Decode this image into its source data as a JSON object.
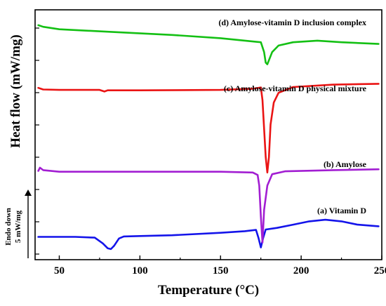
{
  "chart_data": {
    "type": "line",
    "title": "",
    "xlabel": "Temperature (°C)",
    "ylabel": "Heat flow (mW/mg)",
    "xlim": [
      35,
      250
    ],
    "x_ticks": [
      50,
      100,
      150,
      200,
      250
    ],
    "scale_bar": {
      "line1": "Endo down",
      "line2": "5 mW/mg",
      "value": 5,
      "unit": "mW/mg"
    },
    "y_units_note": "curves are vertically offset; y values below are on the relative heat-flow scale (mW/mg) implied by the 5 mW/mg bar",
    "series": [
      {
        "name": "(a) Vitamin D",
        "color": "#1414ea",
        "points": [
          [
            37,
            4.7
          ],
          [
            60,
            4.7
          ],
          [
            72,
            4.6
          ],
          [
            77,
            3.9
          ],
          [
            80,
            3.3
          ],
          [
            82,
            3.2
          ],
          [
            84,
            3.6
          ],
          [
            87,
            4.5
          ],
          [
            90,
            4.75
          ],
          [
            100,
            4.8
          ],
          [
            120,
            4.9
          ],
          [
            150,
            5.2
          ],
          [
            165,
            5.4
          ],
          [
            172,
            5.55
          ],
          [
            173.5,
            4.6
          ],
          [
            175,
            3.4
          ],
          [
            176.5,
            4.6
          ],
          [
            178,
            5.6
          ],
          [
            185,
            5.8
          ],
          [
            195,
            6.2
          ],
          [
            205,
            6.6
          ],
          [
            215,
            6.8
          ],
          [
            225,
            6.6
          ],
          [
            235,
            6.2
          ],
          [
            248,
            6.0
          ]
        ]
      },
      {
        "name": "(b) Amylose",
        "color": "#a21ed2",
        "points": [
          [
            37,
            12.8
          ],
          [
            38,
            13.2
          ],
          [
            40,
            12.9
          ],
          [
            50,
            12.7
          ],
          [
            100,
            12.7
          ],
          [
            150,
            12.7
          ],
          [
            170,
            12.6
          ],
          [
            173,
            12.3
          ],
          [
            174,
            11.0
          ],
          [
            175,
            7.2
          ],
          [
            176,
            4.0
          ],
          [
            177,
            8.0
          ],
          [
            179,
            11.0
          ],
          [
            182,
            12.4
          ],
          [
            190,
            12.75
          ],
          [
            220,
            12.9
          ],
          [
            248,
            13.0
          ]
        ]
      },
      {
        "name": "(c) Amylose-vitamin D physical mixture",
        "color": "#ea1414",
        "points": [
          [
            37,
            23.0
          ],
          [
            40,
            22.8
          ],
          [
            50,
            22.75
          ],
          [
            75,
            22.75
          ],
          [
            78,
            22.55
          ],
          [
            80,
            22.7
          ],
          [
            100,
            22.7
          ],
          [
            150,
            22.75
          ],
          [
            170,
            22.9
          ],
          [
            175,
            23.05
          ],
          [
            176,
            21.5
          ],
          [
            177,
            18.0
          ],
          [
            178,
            14.5
          ],
          [
            179,
            12.6
          ],
          [
            180,
            14.5
          ],
          [
            181,
            18.5
          ],
          [
            183,
            21.2
          ],
          [
            186,
            22.4
          ],
          [
            195,
            23.1
          ],
          [
            220,
            23.4
          ],
          [
            248,
            23.5
          ]
        ]
      },
      {
        "name": "(d) Amylose-vitamin D inclusion complex",
        "color": "#14c014",
        "points": [
          [
            37,
            30.7
          ],
          [
            40,
            30.5
          ],
          [
            50,
            30.2
          ],
          [
            80,
            29.9
          ],
          [
            120,
            29.5
          ],
          [
            150,
            29.1
          ],
          [
            170,
            28.7
          ],
          [
            175,
            28.6
          ],
          [
            177,
            27.4
          ],
          [
            178,
            26.1
          ],
          [
            179,
            25.9
          ],
          [
            180,
            26.4
          ],
          [
            182,
            27.4
          ],
          [
            186,
            28.2
          ],
          [
            195,
            28.6
          ],
          [
            210,
            28.8
          ],
          [
            225,
            28.6
          ],
          [
            248,
            28.4
          ]
        ]
      }
    ]
  }
}
